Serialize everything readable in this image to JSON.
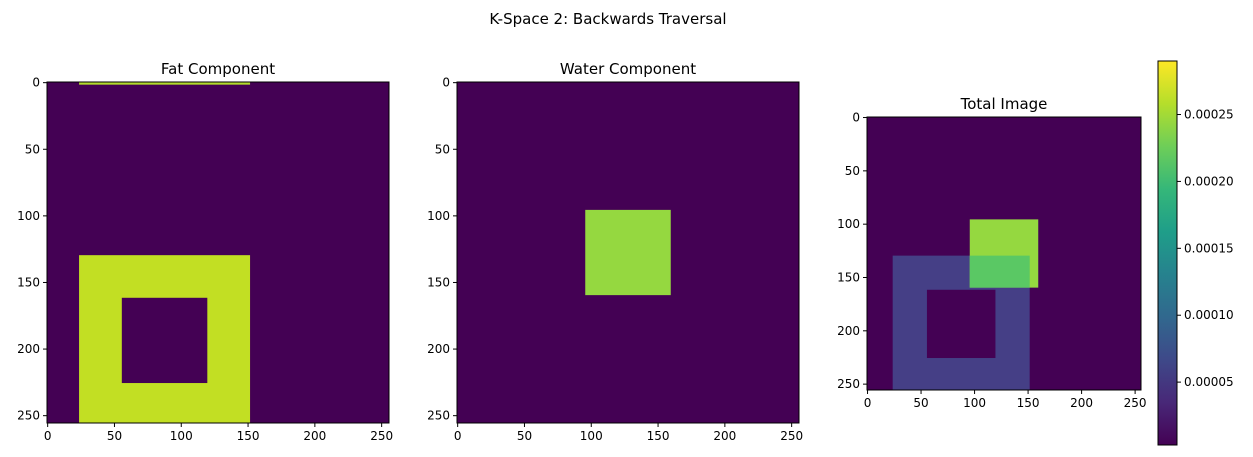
{
  "suptitle": "K-Space 2: Backwards Traversal",
  "chart_data": [
    {
      "type": "heatmap",
      "title": "Fat Component",
      "xlim": [
        0,
        255
      ],
      "ylim": [
        255,
        0
      ],
      "xticks": [
        0,
        50,
        100,
        150,
        200,
        250
      ],
      "yticks": [
        0,
        50,
        100,
        150,
        200,
        250
      ],
      "background_color": "#440154",
      "regions": [
        {
          "x0": 24,
          "x1": 152,
          "y0": 0,
          "y1": 2,
          "color": "#b2dd2c"
        },
        {
          "x0": 24,
          "x1": 152,
          "y0": 130,
          "y1": 256,
          "color": "#c2df23"
        },
        {
          "x0": 56,
          "x1": 120,
          "y0": 162,
          "y1": 226,
          "color": "#440154"
        }
      ]
    },
    {
      "type": "heatmap",
      "title": "Water Component",
      "xlim": [
        0,
        255
      ],
      "ylim": [
        255,
        0
      ],
      "xticks": [
        0,
        50,
        100,
        150,
        200,
        250
      ],
      "yticks": [
        0,
        50,
        100,
        150,
        200,
        250
      ],
      "background_color": "#440154",
      "regions": [
        {
          "x0": 96,
          "x1": 160,
          "y0": 96,
          "y1": 160,
          "color": "#95d840"
        }
      ]
    },
    {
      "type": "heatmap",
      "title": "Total Image",
      "xlim": [
        0,
        255
      ],
      "ylim": [
        255,
        0
      ],
      "xticks": [
        0,
        50,
        100,
        150,
        200,
        250
      ],
      "yticks": [
        0,
        50,
        100,
        150,
        200,
        250
      ],
      "background_color": "#440154",
      "regions": [
        {
          "x0": 24,
          "x1": 152,
          "y0": 130,
          "y1": 256,
          "color": "#453f86"
        },
        {
          "x0": 56,
          "x1": 120,
          "y0": 162,
          "y1": 226,
          "color": "#440154"
        },
        {
          "x0": 96,
          "x1": 160,
          "y0": 96,
          "y1": 160,
          "color": "#95d840"
        },
        {
          "x0": 96,
          "x1": 152,
          "y0": 130,
          "y1": 160,
          "color": "#5ac864"
        }
      ]
    }
  ],
  "colorbar": {
    "colormap": "viridis",
    "min": 3e-06,
    "max": 0.00029,
    "ticks": [
      "0.00005",
      "0.00010",
      "0.00015",
      "0.00020",
      "0.00025"
    ],
    "tick_values": [
      5e-05,
      0.0001,
      0.00015,
      0.0002,
      0.00025
    ],
    "stops": [
      "#440154",
      "#482878",
      "#3e4989",
      "#31688e",
      "#26828e",
      "#1f9e89",
      "#35b779",
      "#6ece58",
      "#b5de2b",
      "#fde725"
    ]
  }
}
